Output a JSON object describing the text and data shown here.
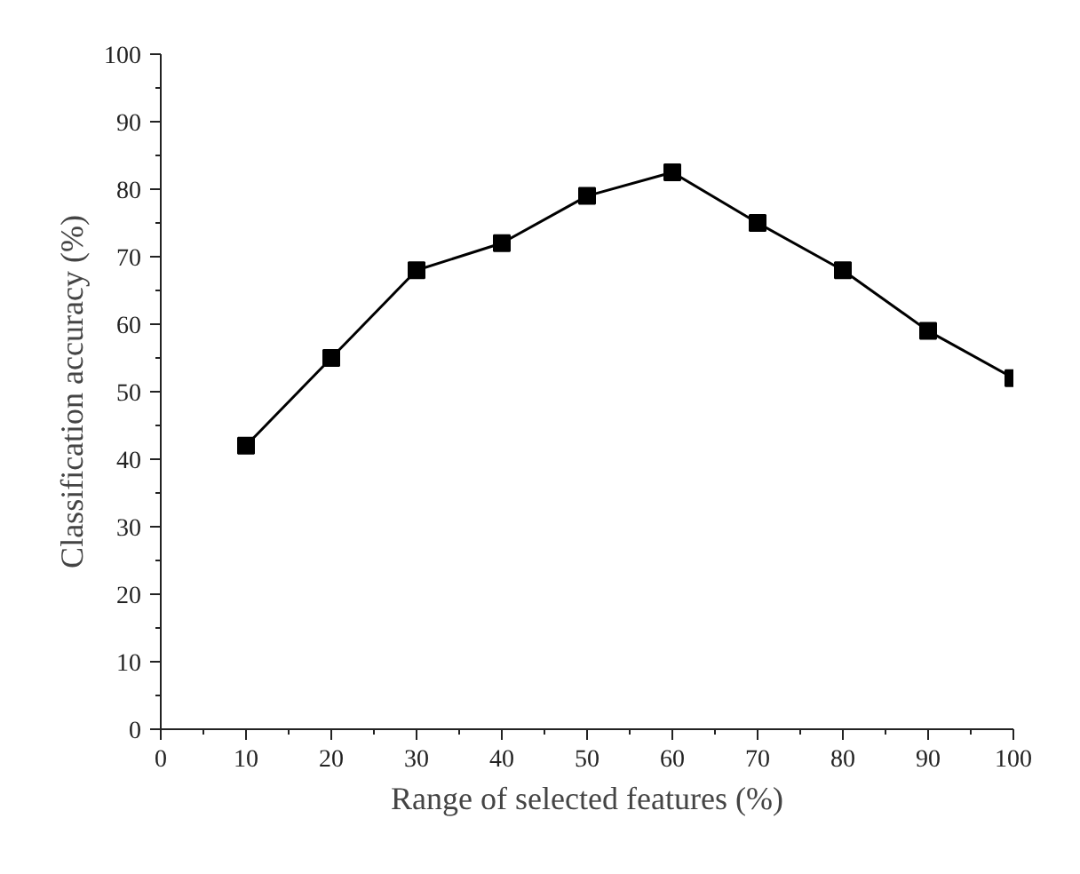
{
  "chart_data": {
    "type": "line",
    "xlabel": "Range of selected features (%)",
    "ylabel": "Classification accuracy (%)",
    "x": [
      10,
      20,
      30,
      40,
      50,
      60,
      70,
      80,
      90,
      100
    ],
    "series": [
      {
        "color": "#000000",
        "values": [
          42,
          55,
          68,
          72,
          79,
          82.5,
          75,
          68,
          59,
          52
        ]
      }
    ],
    "xlim": [
      0,
      100
    ],
    "xticks": [
      0,
      10,
      20,
      30,
      40,
      50,
      60,
      70,
      80,
      90,
      100
    ],
    "ylim": [
      0,
      100
    ],
    "yticks": [
      0,
      10,
      20,
      30,
      40,
      50,
      60,
      70,
      80,
      90,
      100
    ],
    "grid": false,
    "marker": "square",
    "line_style": "solid"
  }
}
